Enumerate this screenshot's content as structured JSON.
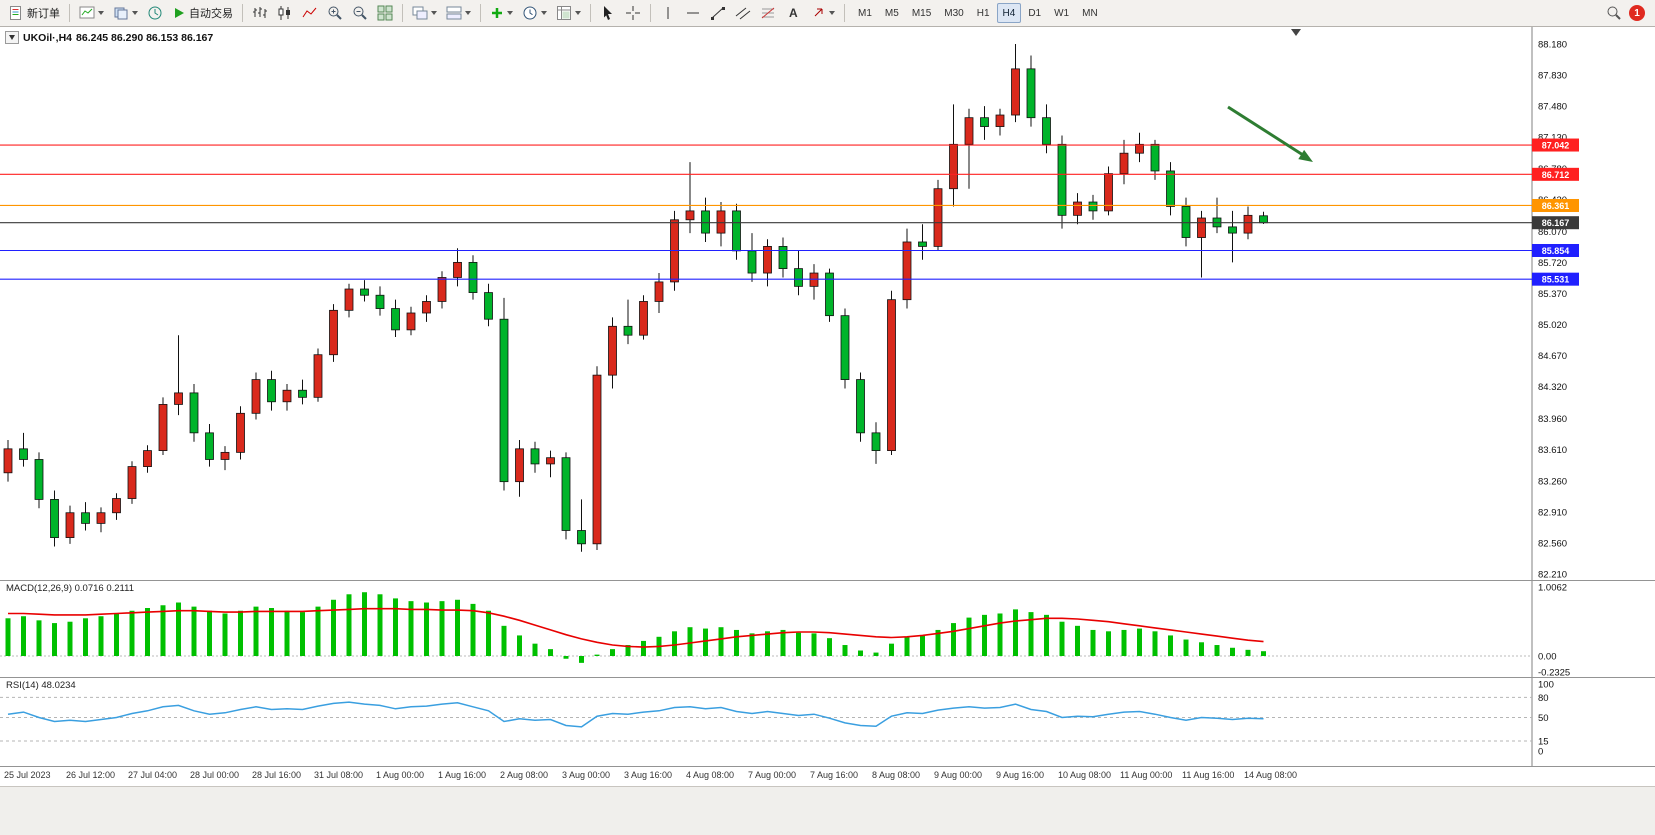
{
  "toolbar": {
    "new_order": "新订单",
    "auto_trading": "自动交易",
    "notification_count": "1",
    "timeframes": [
      {
        "label": "M1",
        "active": false
      },
      {
        "label": "M5",
        "active": false
      },
      {
        "label": "M15",
        "active": false
      },
      {
        "label": "M30",
        "active": false
      },
      {
        "label": "H1",
        "active": false
      },
      {
        "label": "H4",
        "active": true
      },
      {
        "label": "D1",
        "active": false
      },
      {
        "label": "W1",
        "active": false
      },
      {
        "label": "MN",
        "active": false
      }
    ],
    "icon_names": [
      "new-order-icon",
      "new-chart-icon",
      "profiles-icon",
      "market-watch-icon",
      "auto-trading-icon",
      "bar-chart-icon",
      "candlestick-chart-icon",
      "line-chart-icon",
      "zoom-in-icon",
      "zoom-out-icon",
      "tile-windows-icon",
      "cascade-windows-icon",
      "arrange-windows-icon",
      "insert-indicator-icon",
      "periods-icon",
      "templates-icon",
      "cursor-icon",
      "crosshair-icon",
      "vertical-line-icon",
      "horizontal-line-icon",
      "trendline-icon",
      "channel-icon",
      "fibonacci-icon",
      "text-icon",
      "arrows-icon",
      "search-icon",
      "notification-badge"
    ]
  },
  "chart": {
    "symbol": "UKOil·,H4",
    "ohlc": "86.245 86.290 86.153 86.167"
  },
  "indicators": {
    "macd_label": "MACD(12,26,9) 0.0716 0.2111",
    "rsi_label": "RSI(14) 48.0234"
  },
  "chart_data": {
    "type": "candlestick",
    "symbol": "UKOil",
    "period": "H4",
    "ylim": [
      82.21,
      88.37
    ],
    "colors": {
      "bull": "#d9291c",
      "bear": "#00b42a",
      "wick": "#111111",
      "macd_hist": "#00c000",
      "macd_signal": "#e80000",
      "rsi_line": "#3a9fe0",
      "line_red": "#ff2020",
      "line_orange": "#ff9500",
      "line_blue": "#2020ff",
      "current_line": "#3a3a3a",
      "arrow": "#2e7d32"
    },
    "y_axis": [
      "88.180",
      "87.830",
      "87.480",
      "87.130",
      "86.780",
      "86.430",
      "86.070",
      "85.720",
      "85.370",
      "85.020",
      "84.670",
      "84.320",
      "83.960",
      "83.610",
      "83.260",
      "82.910",
      "82.560",
      "82.210"
    ],
    "price_lines": [
      {
        "price": 87.042,
        "color": "#ff2020",
        "tag": "87.042"
      },
      {
        "price": 86.712,
        "color": "#ff2020",
        "tag": "86.712"
      },
      {
        "price": 86.361,
        "color": "#ff9500",
        "tag": "86.361"
      },
      {
        "price": 86.167,
        "color": "#3a3a3a",
        "tag": "86.167"
      },
      {
        "price": 85.854,
        "color": "#2020ff",
        "tag": "85.854"
      },
      {
        "price": 85.531,
        "color": "#2020ff",
        "tag": "85.531"
      }
    ],
    "candles": [
      [
        83.35,
        83.72,
        83.25,
        83.62
      ],
      [
        83.62,
        83.8,
        83.42,
        83.5
      ],
      [
        83.5,
        83.58,
        82.95,
        83.05
      ],
      [
        83.05,
        83.15,
        82.52,
        82.62
      ],
      [
        82.62,
        82.98,
        82.55,
        82.9
      ],
      [
        82.9,
        83.02,
        82.7,
        82.78
      ],
      [
        82.78,
        82.96,
        82.68,
        82.9
      ],
      [
        82.9,
        83.12,
        82.82,
        83.06
      ],
      [
        83.06,
        83.48,
        83.0,
        83.42
      ],
      [
        83.42,
        83.66,
        83.35,
        83.6
      ],
      [
        83.6,
        84.2,
        83.55,
        84.12
      ],
      [
        84.12,
        84.9,
        84.0,
        84.25
      ],
      [
        84.25,
        84.35,
        83.7,
        83.8
      ],
      [
        83.8,
        83.9,
        83.42,
        83.5
      ],
      [
        83.5,
        83.65,
        83.38,
        83.58
      ],
      [
        83.58,
        84.1,
        83.5,
        84.02
      ],
      [
        84.02,
        84.48,
        83.95,
        84.4
      ],
      [
        84.4,
        84.5,
        84.05,
        84.15
      ],
      [
        84.15,
        84.35,
        84.05,
        84.28
      ],
      [
        84.28,
        84.4,
        84.12,
        84.2
      ],
      [
        84.2,
        84.75,
        84.15,
        84.68
      ],
      [
        84.68,
        85.25,
        84.6,
        85.18
      ],
      [
        85.18,
        85.48,
        85.1,
        85.42
      ],
      [
        85.42,
        85.52,
        85.28,
        85.35
      ],
      [
        85.35,
        85.45,
        85.12,
        85.2
      ],
      [
        85.2,
        85.3,
        84.88,
        84.96
      ],
      [
        84.96,
        85.22,
        84.9,
        85.15
      ],
      [
        85.15,
        85.35,
        85.05,
        85.28
      ],
      [
        85.28,
        85.62,
        85.2,
        85.55
      ],
      [
        85.55,
        85.88,
        85.45,
        85.72
      ],
      [
        85.72,
        85.8,
        85.3,
        85.38
      ],
      [
        85.38,
        85.48,
        85.0,
        85.08
      ],
      [
        85.08,
        85.32,
        83.15,
        83.25
      ],
      [
        83.25,
        83.72,
        83.08,
        83.62
      ],
      [
        83.62,
        83.7,
        83.35,
        83.45
      ],
      [
        83.45,
        83.6,
        83.3,
        83.52
      ],
      [
        83.52,
        83.58,
        82.6,
        82.7
      ],
      [
        82.7,
        83.05,
        82.46,
        82.55
      ],
      [
        82.55,
        84.55,
        82.48,
        84.45
      ],
      [
        84.45,
        85.1,
        84.3,
        85.0
      ],
      [
        85.0,
        85.3,
        84.8,
        84.9
      ],
      [
        84.9,
        85.35,
        84.85,
        85.28
      ],
      [
        85.28,
        85.6,
        85.15,
        85.5
      ],
      [
        85.5,
        86.3,
        85.4,
        86.2
      ],
      [
        86.2,
        86.85,
        86.05,
        86.3
      ],
      [
        86.3,
        86.45,
        85.95,
        86.05
      ],
      [
        86.05,
        86.4,
        85.9,
        86.3
      ],
      [
        86.3,
        86.38,
        85.75,
        85.85
      ],
      [
        85.85,
        86.05,
        85.5,
        85.6
      ],
      [
        85.6,
        85.98,
        85.45,
        85.9
      ],
      [
        85.9,
        86.0,
        85.55,
        85.65
      ],
      [
        85.65,
        85.85,
        85.35,
        85.45
      ],
      [
        85.45,
        85.7,
        85.3,
        85.6
      ],
      [
        85.6,
        85.65,
        85.05,
        85.12
      ],
      [
        85.12,
        85.2,
        84.3,
        84.4
      ],
      [
        84.4,
        84.48,
        83.7,
        83.8
      ],
      [
        83.8,
        83.92,
        83.45,
        83.6
      ],
      [
        83.6,
        85.4,
        83.55,
        85.3
      ],
      [
        85.3,
        86.1,
        85.2,
        85.95
      ],
      [
        85.95,
        86.15,
        85.75,
        85.9
      ],
      [
        85.9,
        86.65,
        85.85,
        86.55
      ],
      [
        86.55,
        87.5,
        86.35,
        87.05
      ],
      [
        87.05,
        87.45,
        86.55,
        87.35
      ],
      [
        87.35,
        87.48,
        87.1,
        87.25
      ],
      [
        87.25,
        87.45,
        87.15,
        87.38
      ],
      [
        87.38,
        88.18,
        87.3,
        87.9
      ],
      [
        87.9,
        88.05,
        87.25,
        87.35
      ],
      [
        87.35,
        87.5,
        86.95,
        87.05
      ],
      [
        87.05,
        87.15,
        86.1,
        86.25
      ],
      [
        86.25,
        86.5,
        86.15,
        86.4
      ],
      [
        86.4,
        86.48,
        86.2,
        86.3
      ],
      [
        86.3,
        86.8,
        86.25,
        86.72
      ],
      [
        86.72,
        87.1,
        86.6,
        86.95
      ],
      [
        86.95,
        87.18,
        86.85,
        87.05
      ],
      [
        87.05,
        87.1,
        86.65,
        86.75
      ],
      [
        86.75,
        86.85,
        86.25,
        86.35
      ],
      [
        86.35,
        86.45,
        85.9,
        86.0
      ],
      [
        86.0,
        86.3,
        85.55,
        86.22
      ],
      [
        86.22,
        86.45,
        86.05,
        86.12
      ],
      [
        86.12,
        86.3,
        85.72,
        86.05
      ],
      [
        86.05,
        86.35,
        85.98,
        86.25
      ],
      [
        86.245,
        86.29,
        86.153,
        86.167
      ]
    ],
    "macd": {
      "histogram": [
        0.55,
        0.58,
        0.52,
        0.48,
        0.5,
        0.55,
        0.58,
        0.62,
        0.66,
        0.7,
        0.74,
        0.78,
        0.72,
        0.66,
        0.62,
        0.66,
        0.72,
        0.7,
        0.66,
        0.64,
        0.72,
        0.82,
        0.9,
        0.93,
        0.9,
        0.84,
        0.8,
        0.78,
        0.8,
        0.82,
        0.76,
        0.66,
        0.44,
        0.3,
        0.18,
        0.1,
        -0.04,
        -0.1,
        0.02,
        0.1,
        0.16,
        0.22,
        0.28,
        0.36,
        0.42,
        0.4,
        0.42,
        0.38,
        0.33,
        0.36,
        0.38,
        0.34,
        0.33,
        0.26,
        0.16,
        0.08,
        0.05,
        0.18,
        0.28,
        0.3,
        0.38,
        0.48,
        0.56,
        0.6,
        0.62,
        0.68,
        0.64,
        0.6,
        0.5,
        0.44,
        0.38,
        0.36,
        0.38,
        0.4,
        0.36,
        0.3,
        0.24,
        0.2,
        0.16,
        0.12,
        0.09,
        0.07
      ],
      "signal": [
        0.62,
        0.62,
        0.61,
        0.6,
        0.6,
        0.6,
        0.61,
        0.62,
        0.63,
        0.64,
        0.65,
        0.66,
        0.66,
        0.65,
        0.64,
        0.64,
        0.65,
        0.65,
        0.65,
        0.65,
        0.66,
        0.67,
        0.68,
        0.69,
        0.69,
        0.69,
        0.68,
        0.68,
        0.67,
        0.67,
        0.66,
        0.63,
        0.58,
        0.52,
        0.45,
        0.38,
        0.31,
        0.25,
        0.2,
        0.16,
        0.14,
        0.13,
        0.14,
        0.16,
        0.19,
        0.22,
        0.25,
        0.28,
        0.3,
        0.32,
        0.34,
        0.35,
        0.35,
        0.34,
        0.32,
        0.3,
        0.28,
        0.27,
        0.28,
        0.3,
        0.33,
        0.36,
        0.4,
        0.44,
        0.48,
        0.51,
        0.53,
        0.55,
        0.55,
        0.54,
        0.52,
        0.5,
        0.47,
        0.44,
        0.41,
        0.38,
        0.35,
        0.32,
        0.29,
        0.26,
        0.23,
        0.21
      ],
      "axis": [
        {
          "v": 1.0062,
          "label": "1.0062"
        },
        {
          "v": 0,
          "label": "0.00"
        },
        {
          "v": -0.2325,
          "label": "-0.2325"
        }
      ]
    },
    "rsi": {
      "values": [
        55,
        58,
        50,
        44,
        46,
        44,
        47,
        50,
        56,
        60,
        66,
        68,
        60,
        55,
        57,
        62,
        66,
        62,
        63,
        62,
        67,
        71,
        73,
        70,
        68,
        63,
        66,
        67,
        70,
        72,
        66,
        60,
        44,
        48,
        46,
        47,
        38,
        36,
        52,
        56,
        55,
        58,
        60,
        65,
        66,
        63,
        65,
        59,
        56,
        59,
        56,
        53,
        55,
        49,
        42,
        38,
        37,
        52,
        57,
        56,
        61,
        64,
        66,
        64,
        65,
        70,
        62,
        59,
        50,
        52,
        51,
        55,
        58,
        59,
        55,
        50,
        46,
        50,
        49,
        47,
        49,
        48.02
      ],
      "levels": [
        80,
        50,
        15
      ],
      "axis": [
        {
          "v": 100,
          "label": "100"
        },
        {
          "v": 80,
          "label": "80"
        },
        {
          "v": 50,
          "label": "50"
        },
        {
          "v": 15,
          "label": "15"
        },
        {
          "v": 0,
          "label": "0"
        }
      ]
    },
    "time_labels": [
      "25 Jul 2023",
      "26 Jul 12:00",
      "27 Jul 04:00",
      "28 Jul 00:00",
      "28 Jul 16:00",
      "31 Jul 08:00",
      "1 Aug 00:00",
      "1 Aug 16:00",
      "2 Aug 08:00",
      "3 Aug 00:00",
      "3 Aug 16:00",
      "4 Aug 08:00",
      "7 Aug 00:00",
      "7 Aug 16:00",
      "8 Aug 08:00",
      "9 Aug 00:00",
      "9 Aug 16:00",
      "10 Aug 08:00",
      "11 Aug 00:00",
      "11 Aug 16:00",
      "14 Aug 08:00"
    ]
  }
}
